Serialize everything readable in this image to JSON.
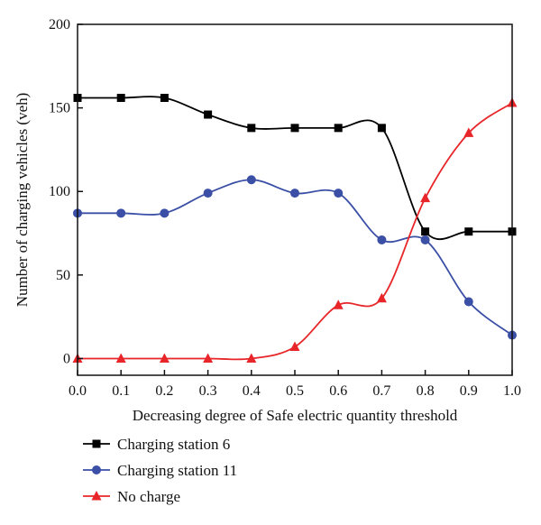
{
  "chart_data": {
    "type": "line",
    "title": "",
    "xlabel": "Decreasing degree of Safe electric quantity threshold",
    "ylabel": "Number of charging vehicles (veh)",
    "x": [
      0.0,
      0.1,
      0.2,
      0.3,
      0.4,
      0.5,
      0.6,
      0.7,
      0.8,
      0.9,
      1.0
    ],
    "x_tick_labels": [
      "0.0",
      "0.1",
      "0.2",
      "0.3",
      "0.4",
      "0.5",
      "0.6",
      "0.7",
      "0.8",
      "0.9",
      "1.0"
    ],
    "y_ticks": [
      0,
      50,
      100,
      150,
      200
    ],
    "y_tick_labels": [
      "0",
      "50",
      "100",
      "150",
      "200"
    ],
    "xlim": [
      0.0,
      1.0
    ],
    "ylim": [
      -10,
      200
    ],
    "grid": false,
    "legend_position": "bottom-left-below-axes",
    "series": [
      {
        "name": "Charging station 6",
        "color": "#000000",
        "marker": "square",
        "values": [
          156,
          156,
          156,
          146,
          138,
          138,
          138,
          138,
          76,
          76,
          76
        ]
      },
      {
        "name": "Charging station 11",
        "color": "#3a4fa5",
        "marker": "circle",
        "values": [
          87,
          87,
          87,
          99,
          107,
          99,
          99,
          71,
          71,
          34,
          14
        ]
      },
      {
        "name": "No charge",
        "color": "#e8262a",
        "marker": "triangle",
        "values": [
          0,
          0,
          0,
          0,
          0,
          7,
          32,
          36,
          96,
          135,
          153
        ]
      }
    ]
  }
}
